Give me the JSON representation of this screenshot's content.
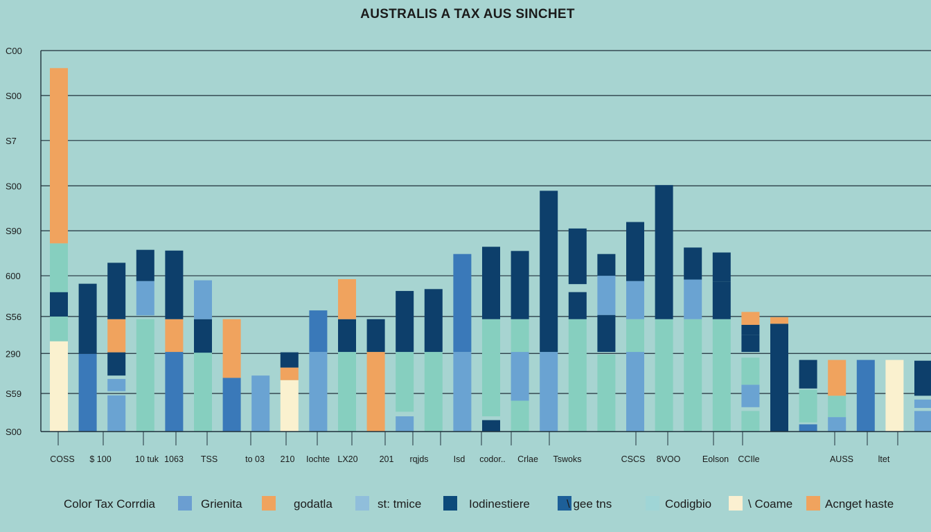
{
  "chart_data": {
    "type": "bar",
    "title": "AUSTRALIS A TAX AUS SINCHET",
    "y_tick_labels": [
      "C00",
      "S00",
      "S7",
      "S00",
      "S90",
      "600",
      "S56",
      "290",
      "S59",
      "S00"
    ],
    "x_tick_labels": [
      "COSS",
      "$ 100",
      "10 tuk",
      "1063",
      "TSS",
      "to 03",
      "210",
      "Iochte",
      "LX20",
      "201",
      "rqjds",
      "Isd",
      "codor..",
      "Crlae",
      "Tswoks",
      "CSCS",
      "8VOO",
      "Eolson",
      "CCIle",
      "AUSS",
      "ltet"
    ],
    "legend_title": "Color Tax Corrdia",
    "legend": [
      {
        "label": "Grienita",
        "color": "#6b9ed1"
      },
      {
        "label": "godatla",
        "color": "#f0a35e"
      },
      {
        "label": "st: tmice",
        "color": "#90bedb"
      },
      {
        "label": "Iodinestiere",
        "color": "#0c4a7a"
      },
      {
        "label": "\\ gee tns",
        "color": "#1d5f98"
      },
      {
        "label": "Codigbio",
        "color": "#9fd5d6"
      },
      {
        "label": "\\ Coame",
        "color": "#fbf0d1"
      },
      {
        "label": "Acnget haste",
        "color": "#f0a35e"
      }
    ],
    "colors": {
      "navy": "#0d3f6b",
      "blue": "#3a79b9",
      "light_blue": "#6aa3d2",
      "teal": "#86cfbf",
      "orange": "#f0a35e",
      "cream": "#faf1cf",
      "background": "#a7d4d1"
    },
    "y_scale": "vertical position from 0 (chart baseline) to 1 (top gridline)",
    "bars": [
      {
        "segments": [
          {
            "color": "cream",
            "from": 0,
            "to": 0.237
          },
          {
            "color": "teal",
            "from": 0.237,
            "to": 0.302
          },
          {
            "color": "navy",
            "from": 0.302,
            "to": 0.366
          },
          {
            "color": "teal",
            "from": 0.366,
            "to": 0.494
          },
          {
            "color": "orange",
            "from": 0.494,
            "to": 0.954
          }
        ]
      },
      {
        "segments": [
          {
            "color": "blue",
            "from": 0,
            "to": 0.204
          },
          {
            "color": "navy",
            "from": 0.204,
            "to": 0.388
          }
        ]
      },
      {
        "segments": [
          {
            "color": "light_blue",
            "from": 0,
            "to": 0.095
          },
          {
            "color": "light_blue",
            "from": 0.106,
            "to": 0.138
          },
          {
            "color": "navy",
            "from": 0.147,
            "to": 0.208
          },
          {
            "color": "orange",
            "from": 0.208,
            "to": 0.295
          },
          {
            "color": "navy",
            "from": 0.295,
            "to": 0.443
          }
        ]
      },
      {
        "segments": [
          {
            "color": "teal",
            "from": 0,
            "to": 0.295
          },
          {
            "color": "light_blue",
            "from": 0.305,
            "to": 0.395
          },
          {
            "color": "navy",
            "from": 0.395,
            "to": 0.477
          }
        ]
      },
      {
        "segments": [
          {
            "color": "blue",
            "from": 0,
            "to": 0.209
          },
          {
            "color": "orange",
            "from": 0.209,
            "to": 0.295
          },
          {
            "color": "navy",
            "from": 0.295,
            "to": 0.4
          },
          {
            "color": "navy",
            "from": 0.4,
            "to": 0.475
          }
        ]
      },
      {
        "segments": [
          {
            "color": "teal",
            "from": 0,
            "to": 0.207
          },
          {
            "color": "navy",
            "from": 0.207,
            "to": 0.295
          },
          {
            "color": "light_blue",
            "from": 0.295,
            "to": 0.397
          }
        ]
      },
      {
        "segments": [
          {
            "color": "blue",
            "from": 0,
            "to": 0.141
          },
          {
            "color": "orange",
            "from": 0.141,
            "to": 0.295
          }
        ]
      },
      {
        "segments": [
          {
            "color": "light_blue",
            "from": 0,
            "to": 0.147
          }
        ]
      },
      {
        "segments": [
          {
            "color": "cream",
            "from": 0,
            "to": 0.135
          },
          {
            "color": "orange",
            "from": 0.135,
            "to": 0.168
          },
          {
            "color": "navy",
            "from": 0.168,
            "to": 0.208
          }
        ]
      },
      {
        "segments": [
          {
            "color": "light_blue",
            "from": 0,
            "to": 0.209
          },
          {
            "color": "blue",
            "from": 0.209,
            "to": 0.318
          }
        ]
      },
      {
        "segments": [
          {
            "color": "teal",
            "from": 0,
            "to": 0.209
          },
          {
            "color": "navy",
            "from": 0.209,
            "to": 0.295
          },
          {
            "color": "orange",
            "from": 0.295,
            "to": 0.4
          }
        ]
      },
      {
        "segments": [
          {
            "color": "orange",
            "from": 0,
            "to": 0.209
          },
          {
            "color": "navy",
            "from": 0.209,
            "to": 0.295
          }
        ]
      },
      {
        "segments": [
          {
            "color": "light_blue",
            "from": 0,
            "to": 0.04
          },
          {
            "color": "teal",
            "from": 0.052,
            "to": 0.209
          },
          {
            "color": "navy",
            "from": 0.209,
            "to": 0.369
          }
        ]
      },
      {
        "segments": [
          {
            "color": "teal",
            "from": 0,
            "to": 0.209
          },
          {
            "color": "navy",
            "from": 0.209,
            "to": 0.374
          }
        ]
      },
      {
        "segments": [
          {
            "color": "light_blue",
            "from": 0,
            "to": 0.209
          },
          {
            "color": "blue",
            "from": 0.209,
            "to": 0.466
          }
        ]
      },
      {
        "segments": [
          {
            "color": "navy",
            "from": 0,
            "to": 0.03
          },
          {
            "color": "teal",
            "from": 0.04,
            "to": 0.209
          },
          {
            "color": "teal",
            "from": 0.209,
            "to": 0.295
          },
          {
            "color": "navy",
            "from": 0.295,
            "to": 0.485
          }
        ]
      },
      {
        "segments": [
          {
            "color": "teal",
            "from": 0,
            "to": 0.081
          },
          {
            "color": "light_blue",
            "from": 0.081,
            "to": 0.11
          },
          {
            "color": "light_blue",
            "from": 0.11,
            "to": 0.209
          },
          {
            "color": "teal",
            "from": 0.209,
            "to": 0.295
          },
          {
            "color": "navy",
            "from": 0.295,
            "to": 0.474
          }
        ]
      },
      {
        "segments": [
          {
            "color": "light_blue",
            "from": 0,
            "to": 0.209
          },
          {
            "color": "navy",
            "from": 0.209,
            "to": 0.632
          }
        ]
      },
      {
        "segments": [
          {
            "color": "teal",
            "from": 0,
            "to": 0.209
          },
          {
            "color": "teal",
            "from": 0.209,
            "to": 0.295
          },
          {
            "color": "navy",
            "from": 0.295,
            "to": 0.366
          },
          {
            "color": "navy",
            "from": 0.387,
            "to": 0.533
          }
        ]
      },
      {
        "segments": [
          {
            "color": "teal",
            "from": 0,
            "to": 0.202
          },
          {
            "color": "navy",
            "from": 0.209,
            "to": 0.306
          },
          {
            "color": "light_blue",
            "from": 0.306,
            "to": 0.409
          },
          {
            "color": "navy",
            "from": 0.409,
            "to": 0.466
          }
        ]
      },
      {
        "segments": [
          {
            "color": "light_blue",
            "from": 0,
            "to": 0.209
          },
          {
            "color": "teal",
            "from": 0.209,
            "to": 0.295
          },
          {
            "color": "light_blue",
            "from": 0.295,
            "to": 0.395
          },
          {
            "color": "navy",
            "from": 0.395,
            "to": 0.55
          }
        ]
      },
      {
        "segments": [
          {
            "color": "teal",
            "from": 0,
            "to": 0.295
          },
          {
            "color": "navy",
            "from": 0.295,
            "to": 0.647
          }
        ]
      },
      {
        "segments": [
          {
            "color": "teal",
            "from": 0,
            "to": 0.209
          },
          {
            "color": "teal",
            "from": 0.209,
            "to": 0.295
          },
          {
            "color": "light_blue",
            "from": 0.295,
            "to": 0.399
          },
          {
            "color": "navy",
            "from": 0.399,
            "to": 0.483
          }
        ]
      },
      {
        "segments": [
          {
            "color": "teal",
            "from": 0,
            "to": 0.295
          },
          {
            "color": "navy",
            "from": 0.295,
            "to": 0.394
          },
          {
            "color": "navy",
            "from": 0.394,
            "to": 0.47
          }
        ]
      },
      {
        "segments": [
          {
            "color": "teal",
            "from": 0,
            "to": 0.054
          },
          {
            "color": "light_blue",
            "from": 0.064,
            "to": 0.123
          },
          {
            "color": "teal",
            "from": 0.123,
            "to": 0.194
          },
          {
            "color": "navy",
            "from": 0.209,
            "to": 0.253
          },
          {
            "color": "navy",
            "from": 0.253,
            "to": 0.28
          },
          {
            "color": "orange",
            "from": 0.28,
            "to": 0.314
          }
        ]
      },
      {
        "segments": [
          {
            "color": "navy",
            "from": 0,
            "to": 0.283
          },
          {
            "color": "orange",
            "from": 0.283,
            "to": 0.3
          }
        ]
      },
      {
        "segments": [
          {
            "color": "blue",
            "from": 0,
            "to": 0.019
          },
          {
            "color": "teal",
            "from": 0.024,
            "to": 0.11
          },
          {
            "color": "navy",
            "from": 0.113,
            "to": 0.188
          }
        ]
      },
      {
        "segments": [
          {
            "color": "light_blue",
            "from": 0,
            "to": 0.038
          },
          {
            "color": "teal",
            "from": 0.038,
            "to": 0.094
          },
          {
            "color": "orange",
            "from": 0.094,
            "to": 0.188
          }
        ]
      },
      {
        "segments": [
          {
            "color": "blue",
            "from": 0,
            "to": 0.188
          }
        ]
      },
      {
        "segments": [
          {
            "color": "cream",
            "from": 0,
            "to": 0.188
          }
        ]
      },
      {
        "segments": [
          {
            "color": "light_blue",
            "from": 0,
            "to": 0.054
          },
          {
            "color": "light_blue",
            "from": 0.062,
            "to": 0.084
          },
          {
            "color": "navy",
            "from": 0.094,
            "to": 0.186
          }
        ]
      }
    ]
  }
}
